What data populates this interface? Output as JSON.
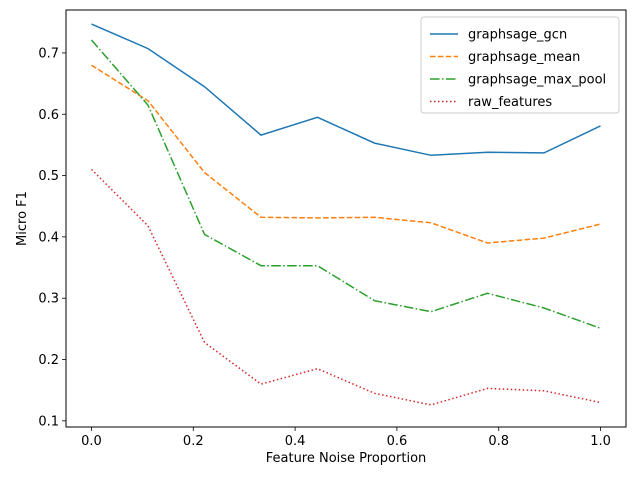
{
  "chart_data": {
    "type": "line",
    "xlabel": "Feature Noise Proportion",
    "ylabel": "Micro F1",
    "xlim": [
      -0.05,
      1.05
    ],
    "ylim": [
      0.09,
      0.77
    ],
    "xticks": [
      0.0,
      0.2,
      0.4,
      0.6,
      0.8,
      1.0
    ],
    "xtick_labels": [
      "0.0",
      "0.2",
      "0.4",
      "0.6",
      "0.8",
      "1.0"
    ],
    "yticks": [
      0.1,
      0.2,
      0.3,
      0.4,
      0.5,
      0.6,
      0.7
    ],
    "ytick_labels": [
      "0.1",
      "0.2",
      "0.3",
      "0.4",
      "0.5",
      "0.6",
      "0.7"
    ],
    "grid": false,
    "legend_position": "top-right",
    "x": [
      0.0,
      0.111,
      0.222,
      0.333,
      0.444,
      0.556,
      0.667,
      0.778,
      0.889,
      1.0
    ],
    "series": [
      {
        "name": "graphsage_gcn",
        "color": "#1f77b4",
        "dash": "solid",
        "values": [
          0.747,
          0.707,
          0.645,
          0.566,
          0.595,
          0.553,
          0.533,
          0.538,
          0.537,
          0.581
        ]
      },
      {
        "name": "graphsage_mean",
        "color": "#ff7f0e",
        "dash": "dashed",
        "values": [
          0.68,
          0.622,
          0.505,
          0.432,
          0.431,
          0.432,
          0.423,
          0.39,
          0.398,
          0.421
        ]
      },
      {
        "name": "graphsage_max_pool",
        "color": "#2ca02c",
        "dash": "dashdot",
        "values": [
          0.721,
          0.615,
          0.404,
          0.353,
          0.353,
          0.296,
          0.278,
          0.308,
          0.284,
          0.251
        ]
      },
      {
        "name": "raw_features",
        "color": "#d62728",
        "dash": "dotted",
        "values": [
          0.51,
          0.418,
          0.228,
          0.16,
          0.185,
          0.145,
          0.126,
          0.153,
          0.149,
          0.13
        ]
      }
    ]
  }
}
